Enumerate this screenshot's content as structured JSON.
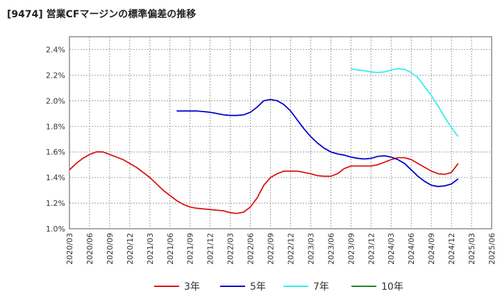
{
  "title": "[9474]  営業CFマージンの標準偏差の推移",
  "chart_data": {
    "type": "line",
    "title": "[9474]  営業CFマージンの標準偏差の推移",
    "xlabel": "",
    "ylabel": "",
    "ylim": [
      1.0,
      2.5
    ],
    "y_ticks": [
      "1.0%",
      "1.2%",
      "1.4%",
      "1.6%",
      "1.8%",
      "2.0%",
      "2.2%",
      "2.4%"
    ],
    "x_ticks": [
      "2020/03",
      "2020/06",
      "2020/09",
      "2020/12",
      "2021/03",
      "2021/06",
      "2021/09",
      "2021/12",
      "2022/03",
      "2022/06",
      "2022/09",
      "2022/12",
      "2023/03",
      "2023/06",
      "2023/09",
      "2023/12",
      "2024/03",
      "2024/06",
      "2024/09",
      "2024/12",
      "2025/03",
      "2025/06"
    ],
    "grid": true,
    "legend_position": "bottom",
    "series": [
      {
        "name": "3年",
        "color": "#dd1111",
        "values": [
          1.46,
          1.51,
          1.55,
          1.58,
          1.6,
          1.6,
          1.58,
          1.56,
          1.54,
          1.51,
          1.48,
          1.44,
          1.4,
          1.35,
          1.3,
          1.26,
          1.22,
          1.19,
          1.17,
          1.16,
          1.155,
          1.15,
          1.145,
          1.14,
          1.125,
          1.12,
          1.13,
          1.17,
          1.24,
          1.34,
          1.4,
          1.43,
          1.45,
          1.45,
          1.45,
          1.44,
          1.43,
          1.415,
          1.41,
          1.41,
          1.43,
          1.47,
          1.49,
          1.49,
          1.49,
          1.49,
          1.5,
          1.52,
          1.54,
          1.555,
          1.555,
          1.54,
          1.51,
          1.48,
          1.45,
          1.43,
          1.425,
          1.44,
          1.51
        ],
        "start_index": 0
      },
      {
        "name": "5年",
        "color": "#0000cc",
        "values": [
          1.92,
          1.92,
          1.92,
          1.92,
          1.915,
          1.91,
          1.9,
          1.89,
          1.885,
          1.885,
          1.89,
          1.91,
          1.95,
          2.0,
          2.01,
          2.0,
          1.97,
          1.92,
          1.85,
          1.78,
          1.72,
          1.67,
          1.63,
          1.6,
          1.585,
          1.575,
          1.56,
          1.55,
          1.545,
          1.55,
          1.565,
          1.57,
          1.56,
          1.54,
          1.51,
          1.46,
          1.41,
          1.37,
          1.34,
          1.33,
          1.335,
          1.35,
          1.39
        ],
        "start_index": 16
      },
      {
        "name": "7年",
        "color": "#33eeee",
        "values": [
          2.25,
          2.24,
          2.235,
          2.225,
          2.22,
          2.225,
          2.24,
          2.25,
          2.245,
          2.22,
          2.18,
          2.11,
          2.04,
          1.96,
          1.87,
          1.79,
          1.72
        ],
        "start_index": 42
      },
      {
        "name": "10年",
        "color": "#228822",
        "values": [],
        "start_index": 0
      }
    ]
  }
}
